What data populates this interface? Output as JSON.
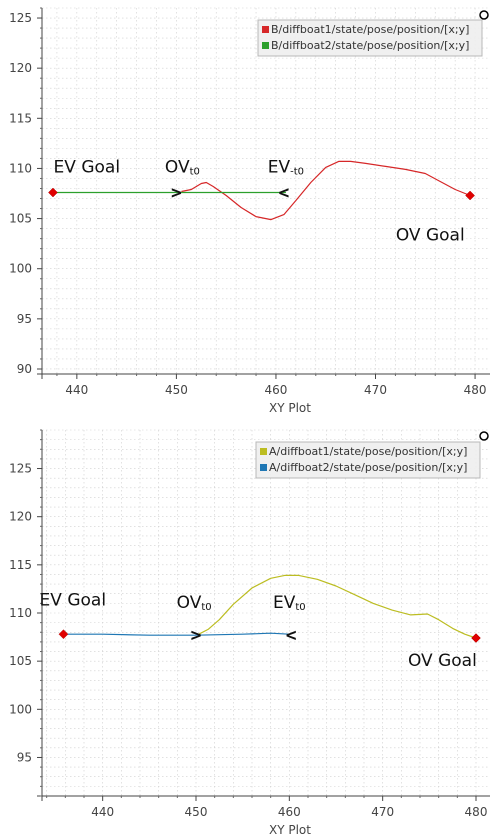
{
  "chart_data": [
    {
      "type": "line",
      "xlabel": "XY Plot",
      "xlim": [
        436.5,
        481.5
      ],
      "ylim": [
        89.5,
        126
      ],
      "xticks": [
        440,
        450,
        460,
        470,
        480
      ],
      "yticks": [
        90,
        95,
        100,
        105,
        110,
        115,
        120,
        125
      ],
      "grid": true,
      "legend_position": "top-right",
      "series": [
        {
          "name": "B/diffboat1/state/pose/position/[x;y]",
          "color": "#d62728",
          "x": [
            450.5,
            451.5,
            452.5,
            453.0,
            453.7,
            455.0,
            456.5,
            458.0,
            459.5,
            460.8,
            462.0,
            463.5,
            465.0,
            466.3,
            467.5,
            469.0,
            471.0,
            473.0,
            475.0,
            476.5,
            478.0,
            479.5
          ],
          "y": [
            107.7,
            107.9,
            108.5,
            108.6,
            108.2,
            107.3,
            106.1,
            105.2,
            104.9,
            105.4,
            106.8,
            108.6,
            110.1,
            110.7,
            110.7,
            110.5,
            110.2,
            109.9,
            109.5,
            108.7,
            107.9,
            107.3
          ]
        },
        {
          "name": "B/diffboat2/state/pose/position/[x;y]",
          "color": "#2ca02c",
          "x": [
            437.6,
            441,
            445,
            450,
            455,
            460,
            461
          ],
          "y": [
            107.6,
            107.6,
            107.6,
            107.6,
            107.6,
            107.6,
            107.6
          ]
        }
      ],
      "markers": [
        {
          "x": 437.6,
          "y": 107.6
        },
        {
          "x": 479.5,
          "y": 107.3
        }
      ],
      "annotations": [
        {
          "text": "EV Goal",
          "x": 441,
          "y": 109.6
        },
        {
          "text": "OV",
          "sub": "t0",
          "x": 450.6,
          "y": 109.6
        },
        {
          "text": "EV",
          "sub": "-t0",
          "x": 461.0,
          "y": 109.6
        },
        {
          "text": "OV Goal",
          "x": 475.5,
          "y": 102.8
        },
        {
          "arrow": ">",
          "x": 450.0,
          "y": 107.6
        },
        {
          "arrow": "<",
          "x": 460.8,
          "y": 107.6
        }
      ]
    },
    {
      "type": "line",
      "xlabel": "XY Plot",
      "xlim": [
        433.5,
        481.5
      ],
      "ylim": [
        91,
        129
      ],
      "xticks": [
        440,
        450,
        460,
        470,
        480
      ],
      "yticks": [
        95,
        100,
        105,
        110,
        115,
        120,
        125
      ],
      "grid": true,
      "legend_position": "top-right",
      "series": [
        {
          "name": "A/diffboat1/state/pose/position/[x;y]",
          "color": "#bcbd22",
          "x": [
            450.3,
            451.3,
            452.5,
            454.0,
            456.0,
            458.0,
            459.5,
            461.0,
            463.0,
            465.0,
            467.0,
            469.0,
            471.0,
            473.0,
            474.8,
            476.0,
            477.5,
            478.8,
            480.0
          ],
          "y": [
            107.8,
            108.3,
            109.3,
            110.9,
            112.6,
            113.6,
            113.9,
            113.9,
            113.5,
            112.8,
            111.9,
            111.0,
            110.3,
            109.8,
            109.9,
            109.3,
            108.4,
            107.8,
            107.4
          ]
        },
        {
          "name": "A/diffboat2/state/pose/position/[x;y]",
          "color": "#1f77b4",
          "x": [
            435.8,
            440,
            445,
            450,
            455,
            458,
            460
          ],
          "y": [
            107.8,
            107.8,
            107.7,
            107.7,
            107.8,
            107.9,
            107.8
          ]
        }
      ],
      "markers": [
        {
          "x": 435.8,
          "y": 107.8
        },
        {
          "x": 480.0,
          "y": 107.4
        }
      ],
      "annotations": [
        {
          "text": "EV Goal",
          "x": 436.8,
          "y": 110.8
        },
        {
          "text": "OV",
          "sub": "t0",
          "x": 449.8,
          "y": 110.5
        },
        {
          "text": "EV",
          "sub": "t0",
          "x": 460.0,
          "y": 110.5
        },
        {
          "text": "OV Goal",
          "x": 476.4,
          "y": 104.5
        },
        {
          "arrow": ">",
          "x": 450.0,
          "y": 107.7
        },
        {
          "arrow": "<",
          "x": 460.2,
          "y": 107.7
        }
      ]
    }
  ]
}
